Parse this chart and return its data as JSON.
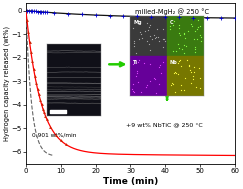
{
  "title": "",
  "xlabel": "Time (min)",
  "ylabel": "Hydrogen capacity released (wt%)",
  "xlim": [
    0,
    60
  ],
  "ylim": [
    -6.5,
    0.3
  ],
  "yticks": [
    0,
    -1,
    -2,
    -3,
    -4,
    -5,
    -6
  ],
  "xticks": [
    0,
    10,
    20,
    30,
    40,
    50,
    60
  ],
  "red_curve_color": "#ff0000",
  "black_curve_color": "#111111",
  "dashed_color": "#666666",
  "annotation_rate": "0.901 wt%/min",
  "annotation_milled": "milled-MgH₂ @ 250 °C",
  "annotation_nbtic": "+9 wt% NbTiC @ 250 °C",
  "triangle_color": "#cc2200",
  "background_color": "#ffffff",
  "green_arrow_color": "#22cc00",
  "figsize": [
    2.43,
    1.89
  ],
  "dpi": 100,
  "left_inset_bg": "#101018",
  "right_q1_color": "#404040",
  "right_q2_color": "#44aa10",
  "right_q3_color": "#7700bb",
  "right_q4_color": "#888800"
}
